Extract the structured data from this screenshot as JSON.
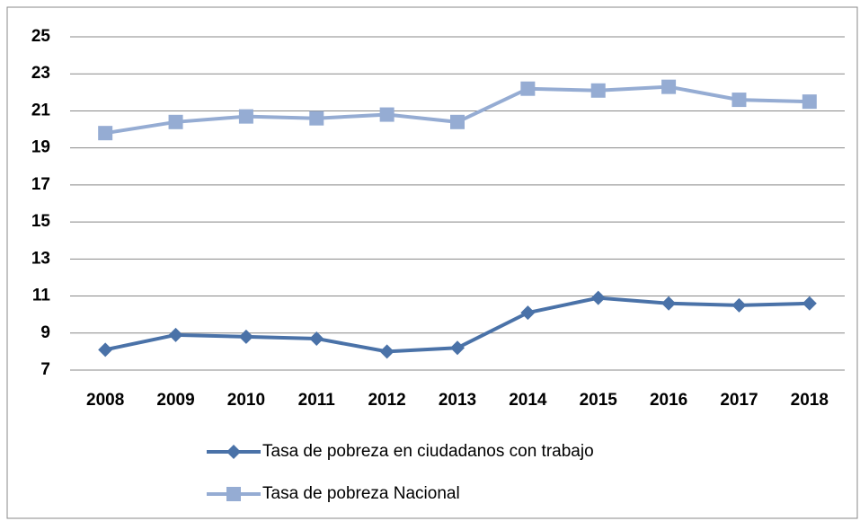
{
  "chart_data": {
    "type": "line",
    "categories": [
      "2008",
      "2009",
      "2010",
      "2011",
      "2012",
      "2013",
      "2014",
      "2015",
      "2016",
      "2017",
      "2018"
    ],
    "series": [
      {
        "name": "Tasa de pobreza en ciudadanos con trabajo",
        "color": "#4a72a8",
        "marker": "diamond",
        "values": [
          8.1,
          8.9,
          8.8,
          8.7,
          8.0,
          8.2,
          10.1,
          10.9,
          10.6,
          10.5,
          10.6
        ]
      },
      {
        "name": "Tasa de pobreza Nacional",
        "color": "#95acd3",
        "marker": "square",
        "values": [
          19.8,
          20.4,
          20.7,
          20.6,
          20.8,
          20.4,
          22.2,
          22.1,
          22.3,
          21.6,
          21.5
        ]
      }
    ],
    "ylim": [
      7,
      25
    ],
    "yticks": [
      7,
      9,
      11,
      13,
      15,
      17,
      19,
      21,
      23,
      25
    ],
    "grid": true,
    "legend": "bottom"
  }
}
